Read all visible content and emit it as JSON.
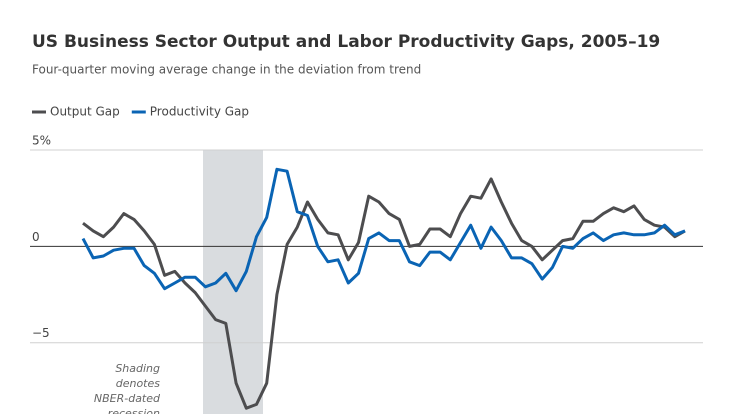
{
  "chart_data": {
    "type": "line",
    "title": "US Business Sector Output and Labor Productivity Gaps, 2005–19",
    "subtitle": "Four-quarter moving average change in the deviation from trend",
    "annotation": [
      "Shading",
      "denotes",
      "NBER-dated",
      "recession"
    ],
    "ylim": [
      -8.7,
      5
    ],
    "yticks": [
      {
        "value": 5,
        "label": "5%"
      },
      0,
      {
        "value": -5,
        "label": "−5"
      }
    ],
    "grid": true,
    "series": [
      {
        "name": "Output Gap",
        "color": "#4d4d4f",
        "values": [
          1.2,
          0.8,
          0.5,
          1.0,
          1.7,
          1.4,
          0.8,
          0.1,
          -1.5,
          -1.3,
          -1.9,
          -2.4,
          -3.1,
          -3.8,
          -4.0,
          -7.1,
          -8.4,
          -8.2,
          -7.1,
          -2.5,
          0.1,
          1.0,
          2.3,
          1.4,
          0.7,
          0.6,
          -0.7,
          0.2,
          2.6,
          2.3,
          1.7,
          1.4,
          0,
          0.1,
          0.9,
          0.9,
          0.5,
          1.7,
          2.6,
          2.5,
          3.5,
          2.3,
          1.2,
          0.3,
          0,
          -0.7,
          -0.2,
          0.3,
          0.4,
          1.3,
          1.3,
          1.7,
          2.0,
          1.8,
          2.1,
          1.4,
          1.1,
          1.0,
          0.5,
          0.8
        ]
      },
      {
        "name": "Productivity Gap",
        "color": "#0a64b4",
        "values": [
          0.4,
          -0.6,
          -0.5,
          -0.2,
          -0.1,
          -0.1,
          -1.0,
          -1.4,
          -2.2,
          -1.9,
          -1.6,
          -1.6,
          -2.1,
          -1.9,
          -1.4,
          -2.3,
          -1.3,
          0.5,
          1.5,
          4.0,
          3.9,
          1.8,
          1.6,
          0,
          -0.8,
          -0.7,
          -1.9,
          -1.4,
          0.4,
          0.7,
          0.3,
          0.3,
          -0.8,
          -1.0,
          -0.3,
          -0.3,
          -0.7,
          0.2,
          1.1,
          -0.1,
          1.0,
          0.3,
          -0.6,
          -0.6,
          -0.9,
          -1.7,
          -1.1,
          0,
          -0.1,
          0.4,
          0.7,
          0.3,
          0.6,
          0.7,
          0.6,
          0.6,
          0.7,
          1.1,
          0.6,
          0.8
        ]
      }
    ]
  }
}
